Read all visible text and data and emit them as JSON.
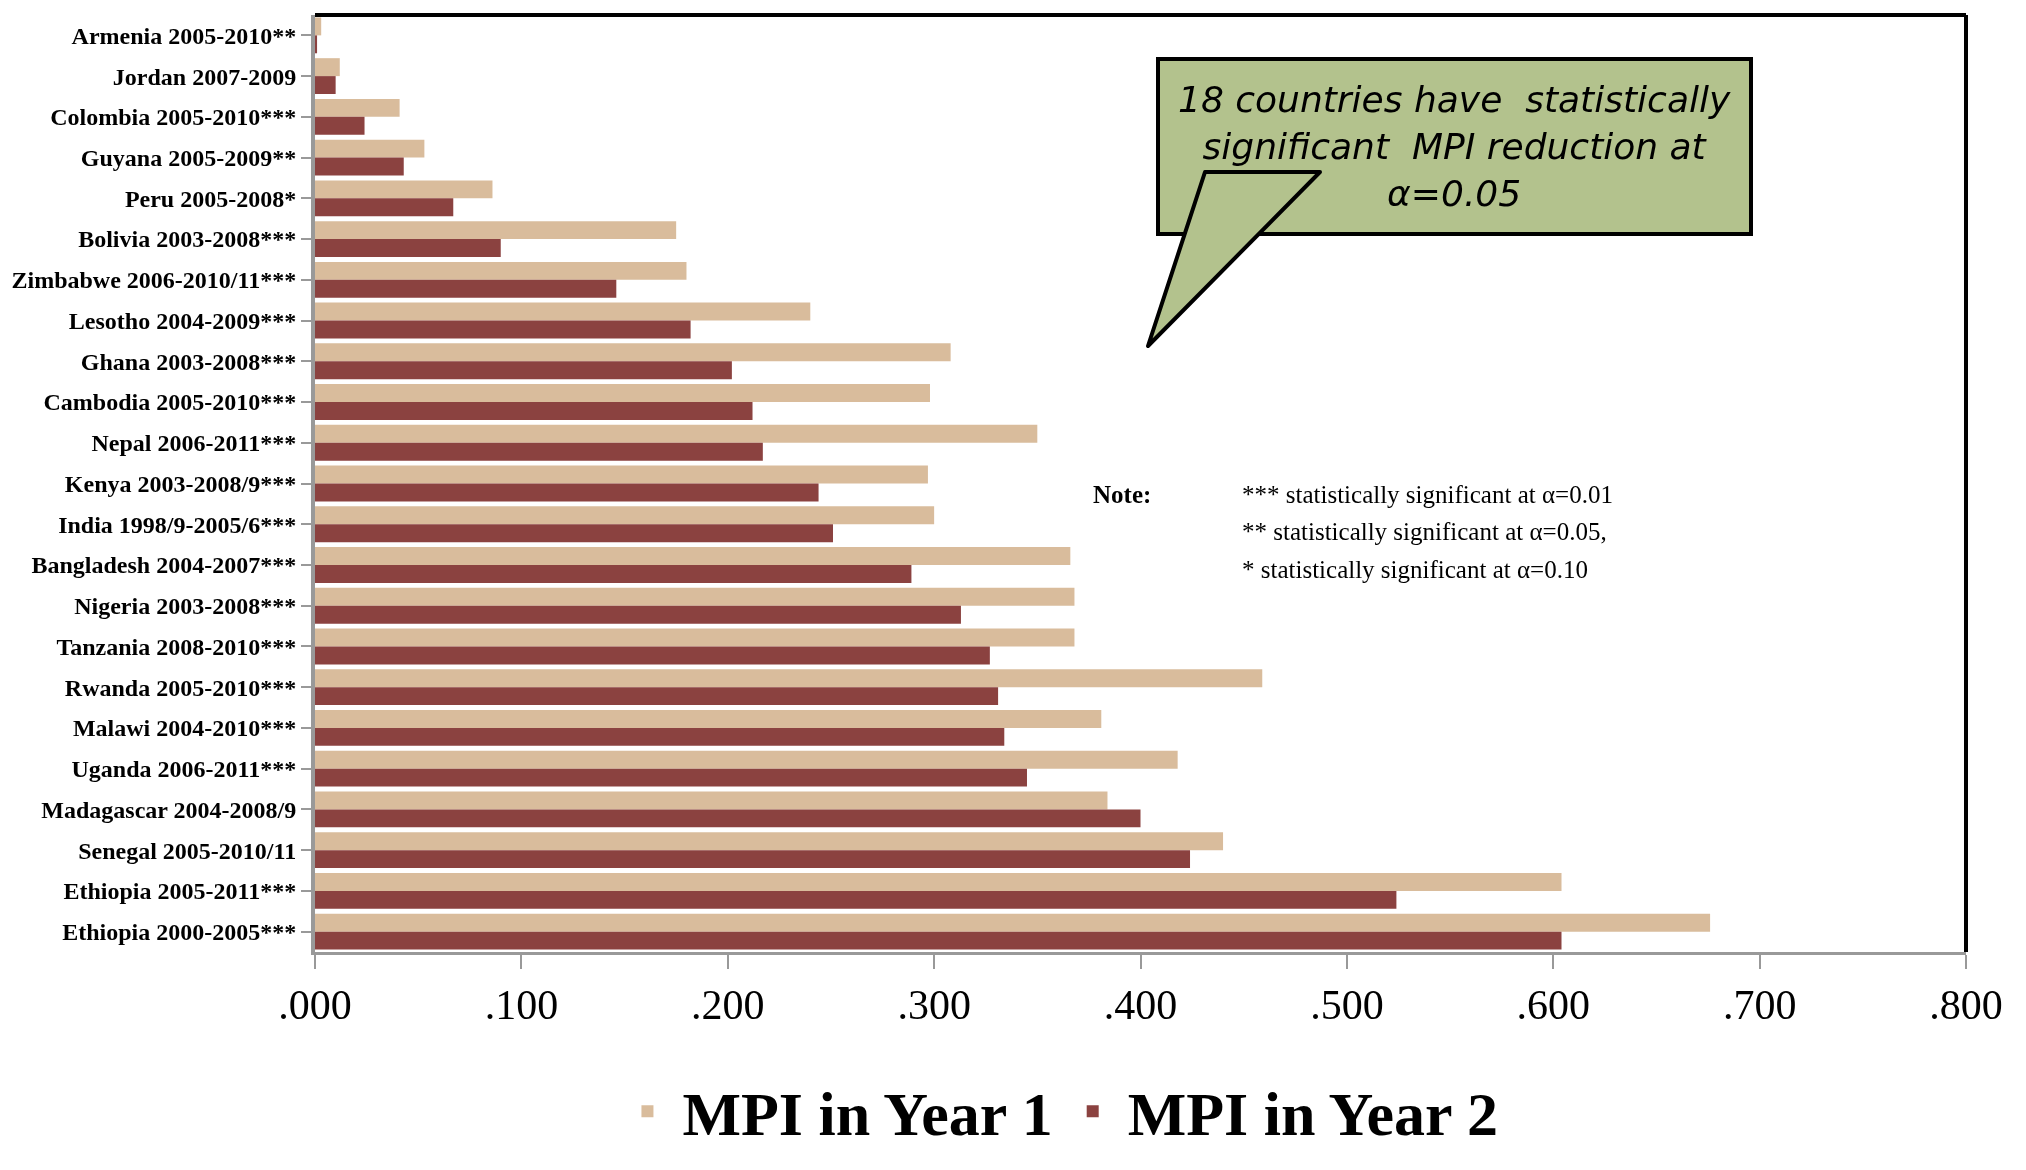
{
  "chart_data": {
    "type": "bar",
    "orientation": "horizontal",
    "categories": [
      "Armenia 2005-2010**",
      "Jordan 2007-2009",
      "Colombia 2005-2010***",
      "Guyana 2005-2009**",
      "Peru 2005-2008*",
      "Bolivia 2003-2008***",
      "Zimbabwe 2006-2010/11***",
      "Lesotho 2004-2009***",
      "Ghana 2003-2008***",
      "Cambodia 2005-2010***",
      "Nepal 2006-2011***",
      "Kenya 2003-2008/9***",
      "India 1998/9-2005/6***",
      "Bangladesh 2004-2007***",
      "Nigeria 2003-2008***",
      "Tanzania 2008-2010***",
      "Rwanda 2005-2010***",
      "Malawi 2004-2010***",
      "Uganda 2006-2011***",
      "Madagascar 2004-2008/9",
      "Senegal 2005-2010/11",
      "Ethiopia 2005-2011***",
      "Ethiopia 2000-2005***"
    ],
    "series": [
      {
        "name": "MPI in Year 1",
        "color": "#d9bc9c",
        "values": [
          0.003,
          0.012,
          0.041,
          0.053,
          0.086,
          0.175,
          0.18,
          0.24,
          0.308,
          0.298,
          0.35,
          0.297,
          0.3,
          0.366,
          0.368,
          0.368,
          0.459,
          0.381,
          0.418,
          0.384,
          0.44,
          0.604,
          0.676
        ]
      },
      {
        "name": "MPI in Year 2",
        "color": "#8b4240",
        "values": [
          0.001,
          0.01,
          0.024,
          0.043,
          0.067,
          0.09,
          0.146,
          0.182,
          0.202,
          0.212,
          0.217,
          0.244,
          0.251,
          0.289,
          0.313,
          0.327,
          0.331,
          0.334,
          0.345,
          0.4,
          0.424,
          0.524,
          0.604
        ]
      }
    ],
    "xlim": [
      0,
      0.8
    ],
    "xticks": [
      {
        "value": 0,
        "label": ".000"
      },
      {
        "value": 0.1,
        "label": ".100"
      },
      {
        "value": 0.2,
        "label": ".200"
      },
      {
        "value": 0.3,
        "label": ".300"
      },
      {
        "value": 0.4,
        "label": ".400"
      },
      {
        "value": 0.5,
        "label": ".500"
      },
      {
        "value": 0.6,
        "label": ".600"
      },
      {
        "value": 0.7,
        "label": ".700"
      },
      {
        "value": 0.8,
        "label": ".800"
      }
    ],
    "grid": false,
    "legend": "bottom",
    "annotations": [
      "18 countries have  statistically significant  MPI reduction at α=0.05",
      "Note:",
      "*** statistically significant at α=0.01",
      "** statistically significant at α=0.05,",
      "* statistically significant at α=0.10"
    ]
  }
}
